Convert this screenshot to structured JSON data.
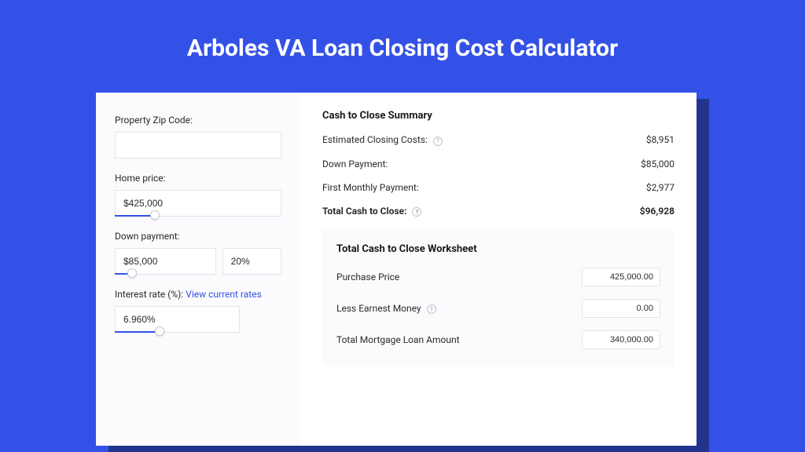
{
  "colors": {
    "page_bg": "#3351e6",
    "accent": "#3351e6",
    "card_bg": "#ffffff",
    "card_shadow": "#21358f",
    "panel_bg": "#fbfbfd",
    "border": "#e2e4ea",
    "text": "#2a2a2a",
    "muted": "#9aa0ad"
  },
  "title": "Arboles VA Loan Closing Cost Calculator",
  "left": {
    "zip": {
      "label": "Property Zip Code:",
      "value": ""
    },
    "home_price": {
      "label": "Home price:",
      "value": "$425,000",
      "slider_percent": 24
    },
    "down_payment": {
      "label": "Down payment:",
      "value": "$85,000",
      "percent": "20%",
      "slider_percent": 18
    },
    "interest_rate": {
      "label_prefix": "Interest rate (%): ",
      "label_link": "View current rates",
      "value": "6.960%",
      "slider_percent": 36
    }
  },
  "summary": {
    "title": "Cash to Close Summary",
    "rows": [
      {
        "label": "Estimated Closing Costs:",
        "help": true,
        "value": "$8,951"
      },
      {
        "label": "Down Payment:",
        "help": false,
        "value": "$85,000"
      },
      {
        "label": "First Monthly Payment:",
        "help": false,
        "value": "$2,977"
      }
    ],
    "total": {
      "label": "Total Cash to Close:",
      "help": true,
      "value": "$96,928"
    }
  },
  "worksheet": {
    "title": "Total Cash to Close Worksheet",
    "rows": [
      {
        "label": "Purchase Price",
        "help": false,
        "value": "425,000.00"
      },
      {
        "label": "Less Earnest Money",
        "help": true,
        "value": "0.00"
      },
      {
        "label": "Total Mortgage Loan Amount",
        "help": false,
        "value": "340,000.00"
      }
    ]
  }
}
